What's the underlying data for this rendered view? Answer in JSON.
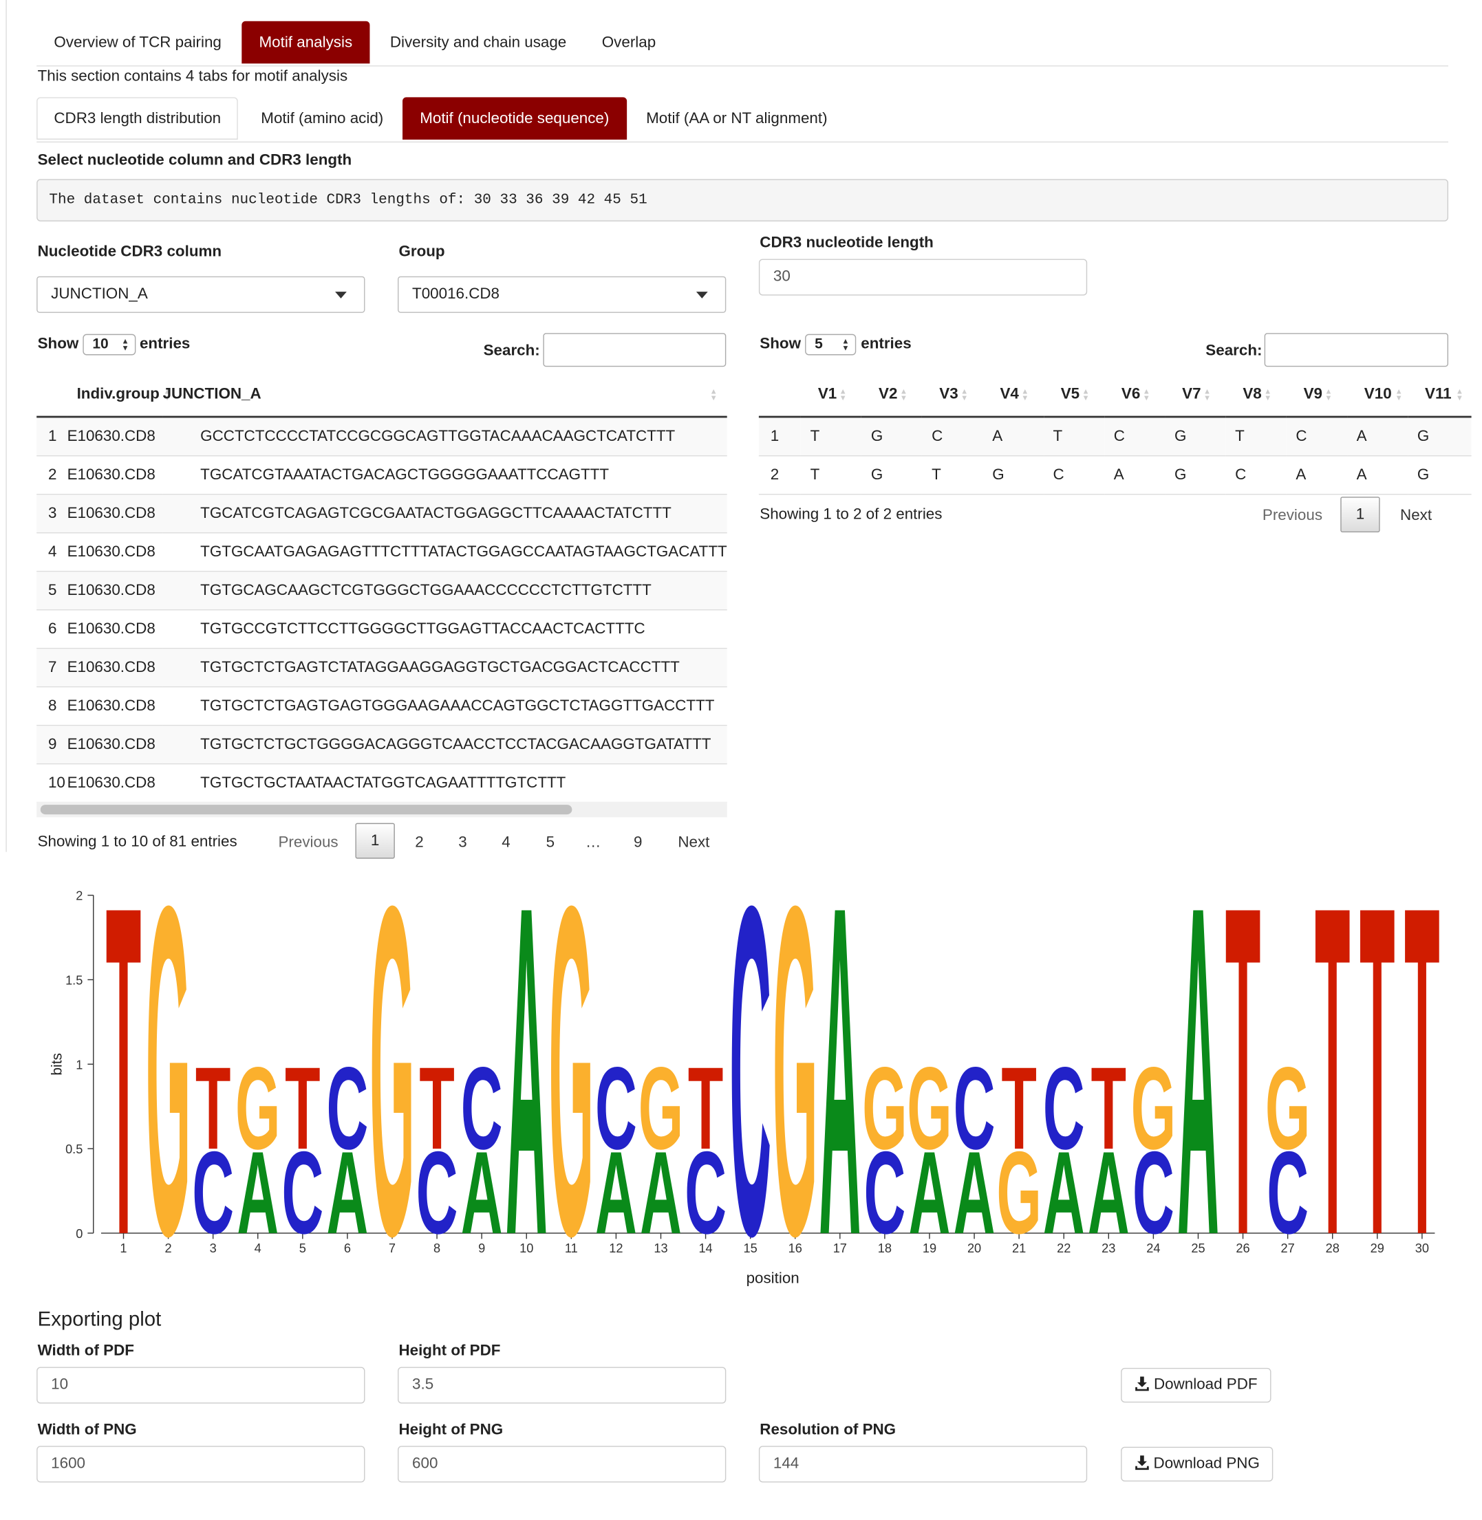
{
  "main_tabs": [
    {
      "label": "Overview of TCR pairing",
      "active": false
    },
    {
      "label": "Motif analysis",
      "active": true
    },
    {
      "label": "Diversity and chain usage",
      "active": false
    },
    {
      "label": "Overlap",
      "active": false
    }
  ],
  "section_description": "This section contains 4 tabs for motif analysis",
  "sub_tabs": [
    {
      "label": "CDR3 length distribution",
      "active": false
    },
    {
      "label": "Motif (amino acid)",
      "active": false
    },
    {
      "label": "Motif (nucleotide sequence)",
      "active": true
    },
    {
      "label": "Motif (AA or NT alignment)",
      "active": false
    }
  ],
  "select_heading": "Select nucleotide column and CDR3 length",
  "lengths_message": "The dataset contains nucleotide CDR3 lengths of: 30 33 36 39 42 45 51",
  "controls": {
    "nt_column_label": "Nucleotide CDR3 column",
    "nt_column_value": "JUNCTION_A",
    "group_label": "Group",
    "group_value": "T00016.CD8",
    "length_label": "CDR3 nucleotide length",
    "length_value": "30"
  },
  "left_table": {
    "show_label": "Show",
    "show_value": "10",
    "entries_label": "entries",
    "search_label": "Search:",
    "columns": [
      "Indiv.group",
      "JUNCTION_A"
    ],
    "rows": [
      {
        "idx": "1",
        "group": "E10630.CD8",
        "seq": "GCCTCTCCCCTATCCGCGGCAGTTGGTACAAACAAGCTCATCTTT"
      },
      {
        "idx": "2",
        "group": "E10630.CD8",
        "seq": "TGCATCGTAAATACTGACAGCTGGGGGAAATTCCAGTTT"
      },
      {
        "idx": "3",
        "group": "E10630.CD8",
        "seq": "TGCATCGTCAGAGTCGCGAATACTGGAGGCTTCAAAACTATCTTT"
      },
      {
        "idx": "4",
        "group": "E10630.CD8",
        "seq": "TGTGCAATGAGAGAGTTTCTTTATACTGGAGCCAATAGTAAGCTGACATTT"
      },
      {
        "idx": "5",
        "group": "E10630.CD8",
        "seq": "TGTGCAGCAAGCTCGTGGGCTGGAAACCCCCCTCTTGTCTTT"
      },
      {
        "idx": "6",
        "group": "E10630.CD8",
        "seq": "TGTGCCGTCTTCCTTGGGGCTTGGAGTTACCAACTCACTTTC"
      },
      {
        "idx": "7",
        "group": "E10630.CD8",
        "seq": "TGTGCTCTGAGTCTATAGGAAGGAGGTGCTGACGGACTCACCTTT"
      },
      {
        "idx": "8",
        "group": "E10630.CD8",
        "seq": "TGTGCTCTGAGTGAGTGGGAAGAAACCAGTGGCTCTAGGTTGACCTTT"
      },
      {
        "idx": "9",
        "group": "E10630.CD8",
        "seq": "TGTGCTCTGCTGGGGACAGGGTCAACCTCCTACGACAAGGTGATATTT"
      },
      {
        "idx": "10",
        "group": "E10630.CD8",
        "seq": "TGTGCTGCTAATAACTATGGTCAGAATTTTGTCTTT"
      }
    ],
    "info": "Showing 1 to 10 of 81 entries",
    "pagination": {
      "previous": "Previous",
      "current": "1",
      "pages": [
        "2",
        "3",
        "4",
        "5"
      ],
      "ellipsis": "…",
      "last": "9",
      "next": "Next"
    }
  },
  "right_table": {
    "show_label": "Show",
    "show_value": "5",
    "entries_label": "entries",
    "search_label": "Search:",
    "columns": [
      "V1",
      "V2",
      "V3",
      "V4",
      "V5",
      "V6",
      "V7",
      "V8",
      "V9",
      "V10",
      "V11"
    ],
    "rows": [
      {
        "idx": "1",
        "cells": [
          "T",
          "G",
          "C",
          "A",
          "T",
          "C",
          "G",
          "T",
          "C",
          "A",
          "G"
        ]
      },
      {
        "idx": "2",
        "cells": [
          "T",
          "G",
          "T",
          "G",
          "C",
          "A",
          "G",
          "C",
          "A",
          "A",
          "G"
        ]
      }
    ],
    "info": "Showing 1 to 2 of 2 entries",
    "pagination": {
      "previous": "Previous",
      "current": "1",
      "next": "Next"
    }
  },
  "chart_data": {
    "type": "sequence-logo",
    "ylabel": "bits",
    "xlabel": "position",
    "ylim": [
      0,
      2
    ],
    "yticks": [
      "0",
      "0.5",
      "1",
      "1.5",
      "2"
    ],
    "xticks": [
      "1",
      "2",
      "3",
      "4",
      "5",
      "6",
      "7",
      "8",
      "9",
      "10",
      "11",
      "12",
      "13",
      "14",
      "15",
      "16",
      "17",
      "18",
      "19",
      "20",
      "21",
      "22",
      "23",
      "24",
      "25",
      "26",
      "27",
      "28",
      "29",
      "30"
    ],
    "colors": {
      "A": "#0a8a1a",
      "C": "#2222c8",
      "G": "#fbb02d",
      "T": "#d01c00"
    },
    "positions": [
      [
        {
          "l": "T",
          "h": 2.0
        }
      ],
      [
        {
          "l": "G",
          "h": 2.0
        }
      ],
      [
        {
          "l": "C",
          "h": 0.5
        },
        {
          "l": "T",
          "h": 0.5
        }
      ],
      [
        {
          "l": "A",
          "h": 0.5
        },
        {
          "l": "G",
          "h": 0.5
        }
      ],
      [
        {
          "l": "C",
          "h": 0.5
        },
        {
          "l": "T",
          "h": 0.5
        }
      ],
      [
        {
          "l": "A",
          "h": 0.5
        },
        {
          "l": "C",
          "h": 0.5
        }
      ],
      [
        {
          "l": "G",
          "h": 2.0
        }
      ],
      [
        {
          "l": "C",
          "h": 0.5
        },
        {
          "l": "T",
          "h": 0.5
        }
      ],
      [
        {
          "l": "A",
          "h": 0.5
        },
        {
          "l": "C",
          "h": 0.5
        }
      ],
      [
        {
          "l": "A",
          "h": 2.0
        }
      ],
      [
        {
          "l": "G",
          "h": 2.0
        }
      ],
      [
        {
          "l": "A",
          "h": 0.5
        },
        {
          "l": "C",
          "h": 0.5
        }
      ],
      [
        {
          "l": "A",
          "h": 0.5
        },
        {
          "l": "G",
          "h": 0.5
        }
      ],
      [
        {
          "l": "C",
          "h": 0.5
        },
        {
          "l": "T",
          "h": 0.5
        }
      ],
      [
        {
          "l": "C",
          "h": 2.0
        }
      ],
      [
        {
          "l": "G",
          "h": 2.0
        }
      ],
      [
        {
          "l": "A",
          "h": 2.0
        }
      ],
      [
        {
          "l": "C",
          "h": 0.5
        },
        {
          "l": "G",
          "h": 0.5
        }
      ],
      [
        {
          "l": "A",
          "h": 0.5
        },
        {
          "l": "G",
          "h": 0.5
        }
      ],
      [
        {
          "l": "A",
          "h": 0.5
        },
        {
          "l": "C",
          "h": 0.5
        }
      ],
      [
        {
          "l": "G",
          "h": 0.5
        },
        {
          "l": "T",
          "h": 0.5
        }
      ],
      [
        {
          "l": "A",
          "h": 0.5
        },
        {
          "l": "C",
          "h": 0.5
        }
      ],
      [
        {
          "l": "A",
          "h": 0.5
        },
        {
          "l": "T",
          "h": 0.5
        }
      ],
      [
        {
          "l": "C",
          "h": 0.5
        },
        {
          "l": "G",
          "h": 0.5
        }
      ],
      [
        {
          "l": "A",
          "h": 2.0
        }
      ],
      [
        {
          "l": "T",
          "h": 2.0
        }
      ],
      [
        {
          "l": "C",
          "h": 0.5
        },
        {
          "l": "G",
          "h": 0.5
        }
      ],
      [
        {
          "l": "T",
          "h": 2.0
        }
      ],
      [
        {
          "l": "T",
          "h": 2.0
        }
      ],
      [
        {
          "l": "T",
          "h": 2.0
        }
      ]
    ]
  },
  "export": {
    "heading": "Exporting plot",
    "pdf_width_label": "Width of PDF",
    "pdf_width_value": "10",
    "pdf_height_label": "Height of PDF",
    "pdf_height_value": "3.5",
    "png_width_label": "Width of PNG",
    "png_width_value": "1600",
    "png_height_label": "Height of PNG",
    "png_height_value": "600",
    "png_res_label": "Resolution of PNG",
    "png_res_value": "144",
    "download_pdf": "Download PDF",
    "download_png": "Download PNG",
    "icon": "download-icon"
  }
}
